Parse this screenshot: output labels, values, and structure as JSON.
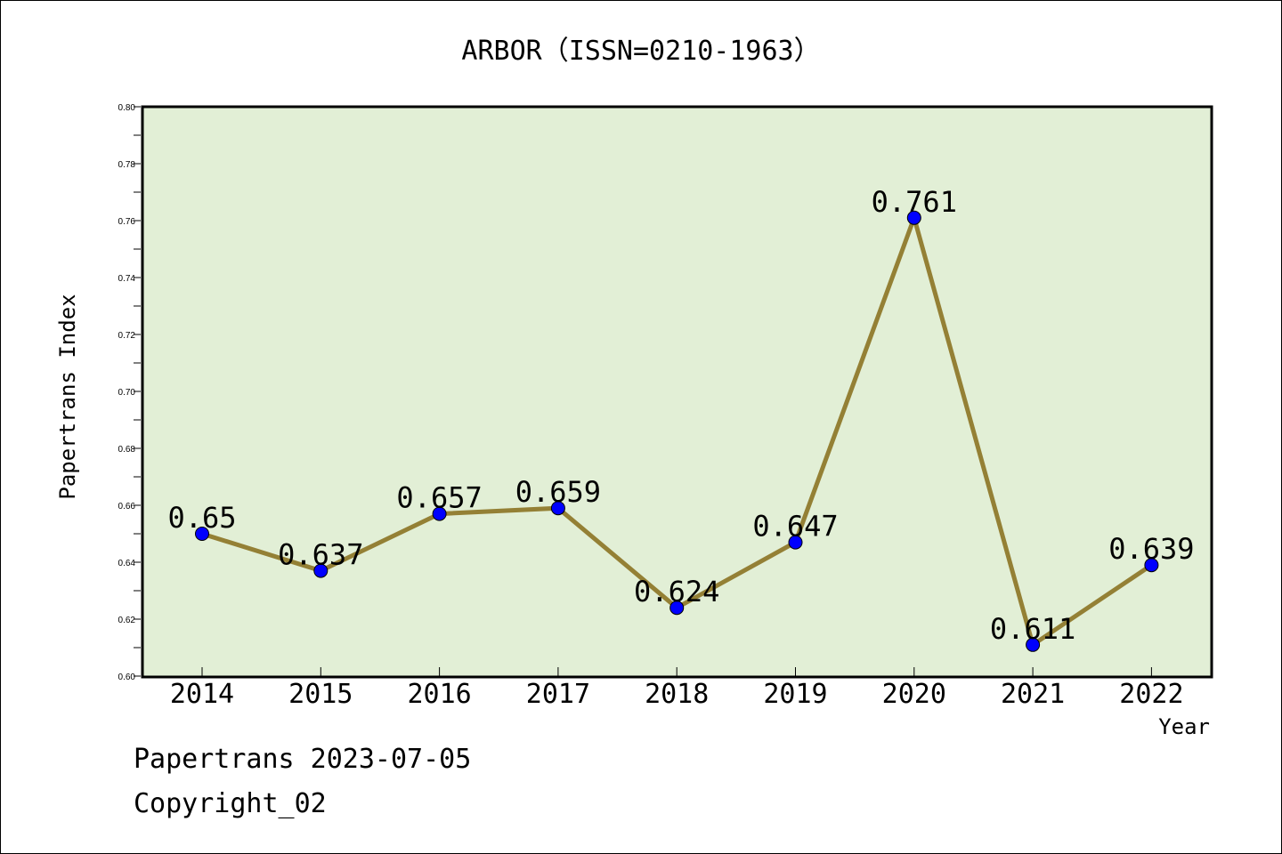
{
  "chart_data": {
    "type": "line",
    "title": "ARBOR（ISSN=0210-1963）",
    "xlabel": "Year",
    "ylabel": "Papertrans Index",
    "categories": [
      "2014",
      "2015",
      "2016",
      "2017",
      "2018",
      "2019",
      "2020",
      "2021",
      "2022"
    ],
    "values": [
      0.65,
      0.637,
      0.657,
      0.659,
      0.624,
      0.647,
      0.761,
      0.611,
      0.639
    ],
    "data_labels": [
      "0.65",
      "0.637",
      "0.657",
      "0.659",
      "0.624",
      "0.647",
      "0.761",
      "0.611",
      "0.639"
    ],
    "ylim": [
      0.6,
      0.8
    ],
    "yticks": [
      "0.60",
      "0.62",
      "0.64",
      "0.66",
      "0.68",
      "0.70",
      "0.72",
      "0.74",
      "0.76",
      "0.78",
      "0.80"
    ],
    "grid": false,
    "colors": {
      "plot_background": "#e2efd6",
      "line": "#948035",
      "marker": "#0000ff"
    }
  },
  "footer": {
    "source": "Papertrans 2023-07-05",
    "copyright": "Copyright_02"
  }
}
